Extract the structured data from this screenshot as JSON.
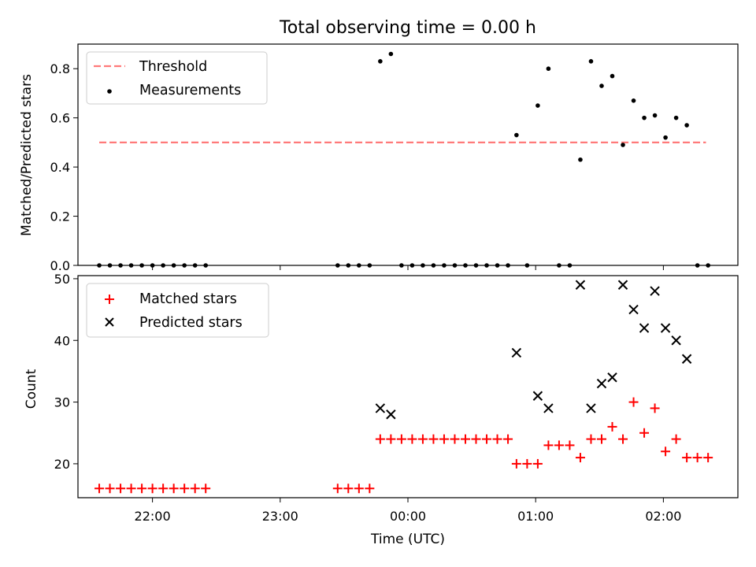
{
  "chart_data": [
    {
      "type": "scatter",
      "title": "Total observing time = 0.00 h",
      "ylabel": "Matched/Predicted stars",
      "xlabel": "",
      "xlim": [
        "21:25",
        "02:35"
      ],
      "ylim": [
        0,
        0.9
      ],
      "yticks": [
        0.0,
        0.2,
        0.4,
        0.6,
        0.8
      ],
      "ytick_labels": [
        "0.0",
        "0.2",
        "0.4",
        "0.6",
        "0.8"
      ],
      "xticks": [
        "22:00",
        "23:00",
        "00:00",
        "01:00",
        "02:00"
      ],
      "legend": {
        "position": "upper-left",
        "entries": [
          "Threshold",
          "Measurements"
        ]
      },
      "threshold": {
        "name": "Threshold",
        "color": "#ff7a7a",
        "style": "dashed",
        "value": 0.5,
        "x_start": "21:35",
        "x_end": "02:20"
      },
      "series": [
        {
          "name": "Measurements",
          "marker": "dot",
          "color": "#000000",
          "points": [
            [
              "21:35",
              0.0
            ],
            [
              "21:40",
              0.0
            ],
            [
              "21:45",
              0.0
            ],
            [
              "21:50",
              0.0
            ],
            [
              "21:55",
              0.0
            ],
            [
              "22:00",
              0.0
            ],
            [
              "22:05",
              0.0
            ],
            [
              "22:10",
              0.0
            ],
            [
              "22:15",
              0.0
            ],
            [
              "22:20",
              0.0
            ],
            [
              "22:25",
              0.0
            ],
            [
              "23:27",
              0.0
            ],
            [
              "23:32",
              0.0
            ],
            [
              "23:37",
              0.0
            ],
            [
              "23:42",
              0.0
            ],
            [
              "23:47",
              0.83
            ],
            [
              "23:52",
              0.86
            ],
            [
              "23:57",
              0.0
            ],
            [
              "00:02",
              0.0
            ],
            [
              "00:07",
              0.0
            ],
            [
              "00:12",
              0.0
            ],
            [
              "00:17",
              0.0
            ],
            [
              "00:22",
              0.0
            ],
            [
              "00:27",
              0.0
            ],
            [
              "00:32",
              0.0
            ],
            [
              "00:37",
              0.0
            ],
            [
              "00:42",
              0.0
            ],
            [
              "00:47",
              0.0
            ],
            [
              "00:51",
              0.53
            ],
            [
              "00:56",
              0.0
            ],
            [
              "01:01",
              0.65
            ],
            [
              "01:06",
              0.8
            ],
            [
              "01:11",
              0.0
            ],
            [
              "01:16",
              0.0
            ],
            [
              "01:21",
              0.43
            ],
            [
              "01:26",
              0.83
            ],
            [
              "01:31",
              0.73
            ],
            [
              "01:36",
              0.77
            ],
            [
              "01:41",
              0.49
            ],
            [
              "01:46",
              0.67
            ],
            [
              "01:51",
              0.6
            ],
            [
              "01:56",
              0.61
            ],
            [
              "02:01",
              0.52
            ],
            [
              "02:06",
              0.6
            ],
            [
              "02:11",
              0.57
            ],
            [
              "02:16",
              0.0
            ],
            [
              "02:21",
              0.0
            ]
          ]
        }
      ]
    },
    {
      "type": "scatter",
      "title": "",
      "xlabel": "Time (UTC)",
      "ylabel": "Count",
      "xlim": [
        "21:25",
        "02:35"
      ],
      "ylim": [
        14.5,
        50.5
      ],
      "yticks": [
        20,
        30,
        40,
        50
      ],
      "ytick_labels": [
        "20",
        "30",
        "40",
        "50"
      ],
      "xticks": [
        "22:00",
        "23:00",
        "00:00",
        "01:00",
        "02:00"
      ],
      "legend": {
        "position": "upper-left",
        "entries": [
          "Matched stars",
          "Predicted stars"
        ]
      },
      "series": [
        {
          "name": "Matched stars",
          "marker": "plus",
          "color": "#ff0000",
          "points": [
            [
              "21:35",
              16
            ],
            [
              "21:40",
              16
            ],
            [
              "21:45",
              16
            ],
            [
              "21:50",
              16
            ],
            [
              "21:55",
              16
            ],
            [
              "22:00",
              16
            ],
            [
              "22:05",
              16
            ],
            [
              "22:10",
              16
            ],
            [
              "22:15",
              16
            ],
            [
              "22:20",
              16
            ],
            [
              "22:25",
              16
            ],
            [
              "23:27",
              16
            ],
            [
              "23:32",
              16
            ],
            [
              "23:37",
              16
            ],
            [
              "23:42",
              16
            ],
            [
              "23:47",
              24
            ],
            [
              "23:52",
              24
            ],
            [
              "23:57",
              24
            ],
            [
              "00:02",
              24
            ],
            [
              "00:07",
              24
            ],
            [
              "00:12",
              24
            ],
            [
              "00:17",
              24
            ],
            [
              "00:22",
              24
            ],
            [
              "00:27",
              24
            ],
            [
              "00:32",
              24
            ],
            [
              "00:37",
              24
            ],
            [
              "00:42",
              24
            ],
            [
              "00:47",
              24
            ],
            [
              "00:51",
              20
            ],
            [
              "00:56",
              20
            ],
            [
              "01:01",
              20
            ],
            [
              "01:06",
              23
            ],
            [
              "01:11",
              23
            ],
            [
              "01:16",
              23
            ],
            [
              "01:21",
              21
            ],
            [
              "01:26",
              24
            ],
            [
              "01:31",
              24
            ],
            [
              "01:36",
              26
            ],
            [
              "01:41",
              24
            ],
            [
              "01:46",
              30
            ],
            [
              "01:51",
              25
            ],
            [
              "01:56",
              29
            ],
            [
              "02:01",
              22
            ],
            [
              "02:06",
              24
            ],
            [
              "02:11",
              21
            ],
            [
              "02:16",
              21
            ],
            [
              "02:21",
              21
            ]
          ]
        },
        {
          "name": "Predicted stars",
          "marker": "x",
          "color": "#000000",
          "points": [
            [
              "23:47",
              29
            ],
            [
              "23:52",
              28
            ],
            [
              "00:51",
              38
            ],
            [
              "01:01",
              31
            ],
            [
              "01:06",
              29
            ],
            [
              "01:21",
              49
            ],
            [
              "01:26",
              29
            ],
            [
              "01:31",
              33
            ],
            [
              "01:36",
              34
            ],
            [
              "01:41",
              49
            ],
            [
              "01:46",
              45
            ],
            [
              "01:51",
              42
            ],
            [
              "01:56",
              48
            ],
            [
              "02:01",
              42
            ],
            [
              "02:06",
              40
            ],
            [
              "02:11",
              37
            ]
          ]
        }
      ]
    }
  ]
}
